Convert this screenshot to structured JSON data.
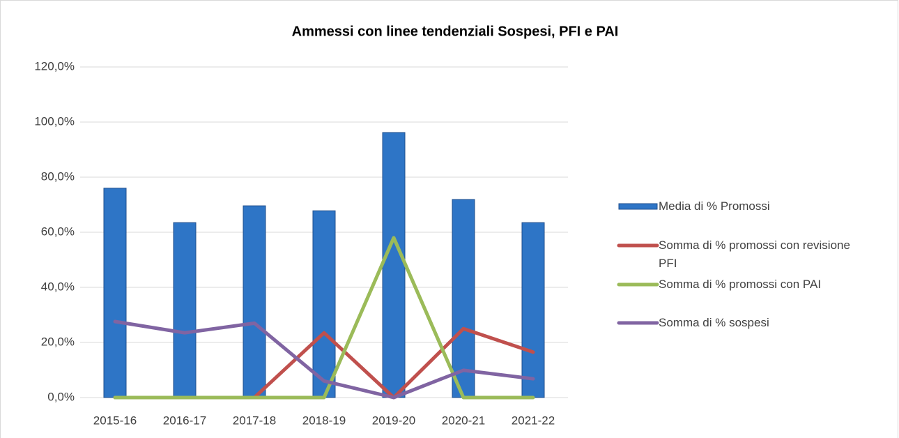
{
  "chart_data": {
    "type": "bar",
    "title": "Ammessi con linee tendenziali Sospesi, PFI e PAI",
    "categories": [
      "2015-16",
      "2016-17",
      "2017-18",
      "2018-19",
      "2019-20",
      "2020-21",
      "2021-22"
    ],
    "series": [
      {
        "name": "Media di % Promossi",
        "type": "bar",
        "color": "#2e75c6",
        "values": [
          76,
          63.5,
          69.6,
          67.8,
          96.2,
          71.9,
          63.5
        ]
      },
      {
        "name": "Somma di % promossi con revisione PFI",
        "type": "line",
        "color": "#c0504d",
        "values": [
          0,
          0,
          0,
          23.5,
          0,
          25,
          16.5
        ]
      },
      {
        "name": "Somma di % promossi con PAI",
        "type": "line",
        "color": "#9bbb59",
        "values": [
          0,
          0,
          0,
          0,
          58,
          0,
          0
        ]
      },
      {
        "name": "Somma di % sospesi",
        "type": "line",
        "color": "#8064a2",
        "values": [
          27.6,
          23.5,
          27,
          6,
          0,
          9.9,
          6.8
        ]
      }
    ],
    "ylim": [
      0,
      120
    ],
    "yticks": [
      {
        "value": 0,
        "label": "0,0%"
      },
      {
        "value": 20,
        "label": "20,0%"
      },
      {
        "value": 40,
        "label": "40,0%"
      },
      {
        "value": 60,
        "label": "60,0%"
      },
      {
        "value": 80,
        "label": "80,0%"
      },
      {
        "value": 100,
        "label": "100,0%"
      },
      {
        "value": 120,
        "label": "120,0%"
      }
    ],
    "grid": true,
    "legend": "right"
  }
}
